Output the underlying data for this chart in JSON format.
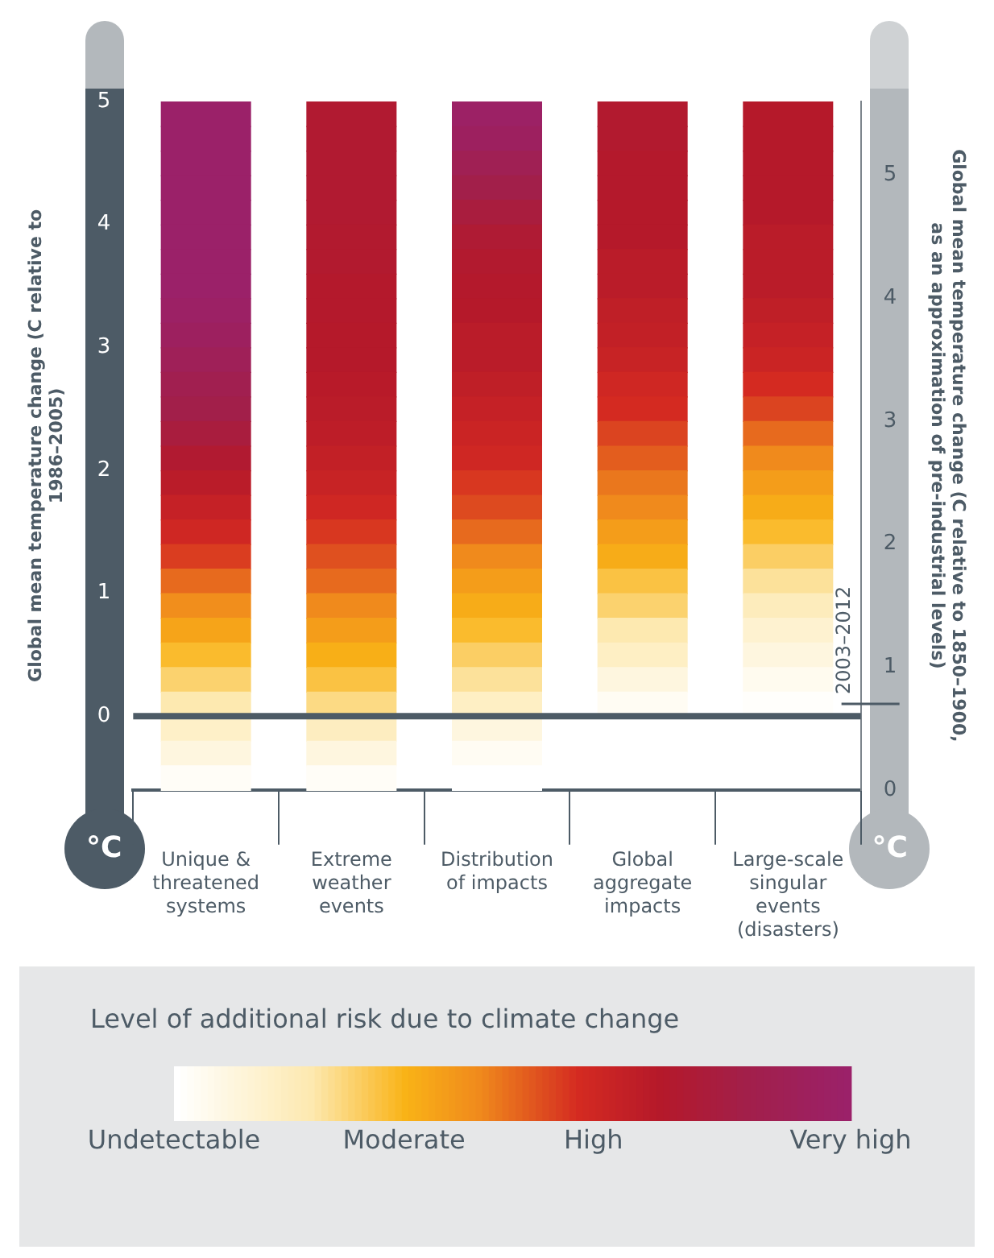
{
  "chart_data": {
    "type": "heatmap",
    "categories": [
      "Unique & threatened systems",
      "Extreme weather events",
      "Distribution of impacts",
      "Global aggregate impacts",
      "Large-scale singular events (disasters)"
    ],
    "cells": [
      [
        1,
        0.75,
        0.98,
        0.74,
        0.72
      ],
      [
        1,
        0.75,
        0.95,
        0.74,
        0.72
      ],
      [
        1,
        0.75,
        0.9,
        0.73,
        0.72
      ],
      [
        1,
        0.75,
        0.85,
        0.73,
        0.72
      ],
      [
        1,
        0.75,
        0.8,
        0.72,
        0.72
      ],
      [
        1,
        0.74,
        0.76,
        0.72,
        0.7
      ],
      [
        1,
        0.74,
        0.74,
        0.7,
        0.7
      ],
      [
        1,
        0.73,
        0.73,
        0.7,
        0.7
      ],
      [
        0.98,
        0.73,
        0.72,
        0.68,
        0.68
      ],
      [
        0.95,
        0.72,
        0.7,
        0.67,
        0.66
      ],
      [
        0.92,
        0.72,
        0.7,
        0.65,
        0.64
      ],
      [
        0.88,
        0.71,
        0.68,
        0.62,
        0.6
      ],
      [
        0.85,
        0.7,
        0.66,
        0.6,
        0.56
      ],
      [
        0.8,
        0.69,
        0.64,
        0.56,
        0.5
      ],
      [
        0.75,
        0.67,
        0.62,
        0.52,
        0.45
      ],
      [
        0.7,
        0.65,
        0.58,
        0.48,
        0.4
      ],
      [
        0.66,
        0.62,
        0.55,
        0.45,
        0.36
      ],
      [
        0.62,
        0.58,
        0.5,
        0.4,
        0.32
      ],
      [
        0.57,
        0.54,
        0.45,
        0.36,
        0.27
      ],
      [
        0.5,
        0.5,
        0.4,
        0.3,
        0.22
      ],
      [
        0.44,
        0.45,
        0.36,
        0.26,
        0.17
      ],
      [
        0.38,
        0.4,
        0.32,
        0.2,
        0.12
      ],
      [
        0.32,
        0.35,
        0.27,
        0.15,
        0.08
      ],
      [
        0.26,
        0.3,
        0.22,
        0.08,
        0.04
      ],
      [
        0.2,
        0.24,
        0.15,
        0.03,
        0.01
      ],
      [
        0.14,
        0.16,
        0.08,
        null,
        null
      ],
      [
        0.08,
        0.08,
        0.03,
        null,
        null
      ],
      [
        0.02,
        0.02,
        0,
        null,
        null
      ]
    ],
    "ylabel": "Global mean temperature change (C relative to 1986–2005)",
    "y2label": "Global mean temperature change (C relative to 1850–1900, as an approximation of pre-industrial levels)",
    "ylim": [
      -0.6,
      5
    ],
    "yticks": [
      0,
      1,
      2,
      3,
      4,
      5
    ],
    "y2lim": [
      0,
      5.6
    ],
    "y2ticks": [
      0,
      1,
      2,
      3,
      4,
      5
    ],
    "clabel": "Level of additional risk due to climate change",
    "clim": [
      0,
      1
    ],
    "cticks": [
      {
        "value": 0,
        "label": "Undetectable"
      },
      {
        "value": 0.34,
        "label": "Moderate"
      },
      {
        "value": 0.62,
        "label": "High"
      },
      {
        "value": 1,
        "label": "Very high"
      }
    ],
    "ref_lines": [
      {
        "axis": "y",
        "value": 0,
        "color": "#4d5b66"
      },
      {
        "axis": "y2",
        "value": 0.7,
        "label": "2003–2012",
        "color": "#4d5b66"
      }
    ],
    "annotations": [
      "°C",
      "°C"
    ]
  }
}
